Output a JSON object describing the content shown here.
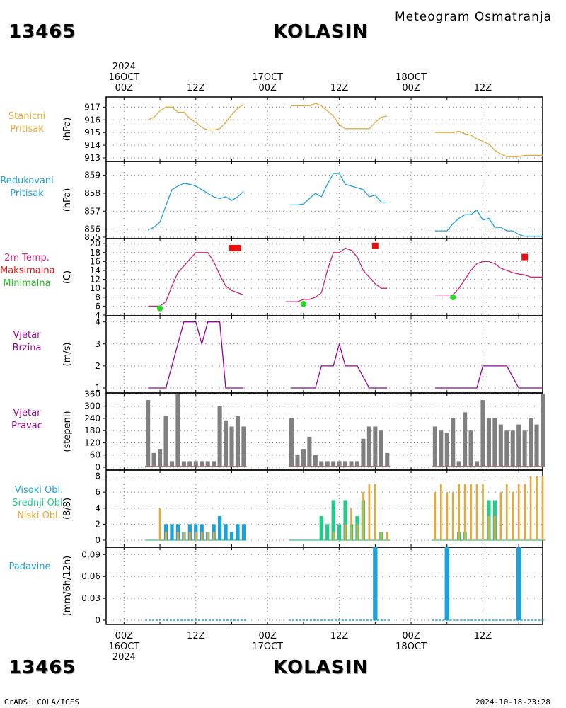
{
  "header": {
    "station_id": "13465",
    "station_name": "KOLASIN",
    "title_right": "Meteogram Osmatranja"
  },
  "footer": {
    "left": "GrADS: COLA/IGES",
    "right": "2024-10-18-23:28"
  },
  "time_axis": {
    "year": "2024",
    "top_labels": [
      {
        "t": 0,
        "lines": [
          "2024",
          "16OCT",
          "00Z"
        ]
      },
      {
        "t": 12,
        "lines": [
          "12Z"
        ]
      },
      {
        "t": 24,
        "lines": [
          "17OCT",
          "00Z"
        ]
      },
      {
        "t": 36,
        "lines": [
          "12Z"
        ]
      },
      {
        "t": 48,
        "lines": [
          "18OCT",
          "00Z"
        ]
      },
      {
        "t": 60,
        "lines": [
          "12Z"
        ]
      }
    ],
    "bottom_labels": [
      {
        "t": 0,
        "lines": [
          "00Z",
          "16OCT",
          "2024"
        ]
      },
      {
        "t": 12,
        "lines": [
          "12Z"
        ]
      },
      {
        "t": 24,
        "lines": [
          "00Z",
          "17OCT"
        ]
      },
      {
        "t": 36,
        "lines": [
          "12Z"
        ]
      },
      {
        "t": 48,
        "lines": [
          "00Z",
          "18OCT"
        ]
      },
      {
        "t": 60,
        "lines": [
          "12Z"
        ]
      }
    ],
    "range_hours": [
      -3,
      70
    ]
  },
  "panel_labels": {
    "pressure": {
      "lines": [
        "Stanicni",
        "Pritisak"
      ],
      "unit": "(hPa)",
      "color": "#e8a838"
    },
    "reduced": {
      "lines": [
        "Redukovani",
        "Pritisak"
      ],
      "unit": "(hPa)",
      "color": "#1ea0d8"
    },
    "temp": {
      "lines": [
        "2m Temp.",
        "Maksimalna",
        "Minimalna"
      ],
      "colors": [
        "#cc2277",
        "#e81010",
        "#22bb22"
      ],
      "unit": "(C)"
    },
    "wind_speed": {
      "lines": [
        "Vjetar",
        "Brzina"
      ],
      "unit": "(m/s)",
      "color": "#990099"
    },
    "wind_dir": {
      "lines": [
        "Vjetar",
        "Pravac"
      ],
      "unit": "(stepeni)",
      "color": "#990099"
    },
    "clouds": {
      "lines": [
        "Visoki Obl.",
        "Srednji Obl.",
        "Niski Obl."
      ],
      "colors": [
        "#1ea0d8",
        "#22cc88",
        "#e8a838"
      ],
      "unit": "(8/8)"
    },
    "precip": {
      "lines": [
        "Padavine"
      ],
      "unit": "(mm/6h/12h)",
      "color": "#1ea0d8"
    }
  },
  "chart_data": [
    {
      "id": "pressure",
      "type": "line",
      "ylim": [
        913,
        917.8
      ],
      "yticks": [
        913,
        914,
        915,
        916,
        917
      ],
      "color": "#e8a838",
      "segments": [
        {
          "x": [
            4,
            5,
            6,
            7,
            8,
            9,
            10,
            11,
            12,
            13,
            14,
            15,
            16,
            17,
            18,
            19,
            20
          ],
          "y": [
            916,
            916.2,
            916.7,
            917,
            917,
            916.6,
            916.6,
            916.1,
            915.8,
            915.4,
            915.2,
            915.2,
            915.3,
            915.8,
            916.4,
            916.9,
            917.2
          ]
        },
        {
          "x": [
            28,
            29,
            30,
            31,
            32,
            33,
            34,
            35,
            36,
            37,
            38,
            39,
            40,
            41,
            42,
            43,
            44
          ],
          "y": [
            917.1,
            917.1,
            917.1,
            917.1,
            917.3,
            917.1,
            916.7,
            916.3,
            915.6,
            915.3,
            915.3,
            915.3,
            915.3,
            915.3,
            915.8,
            916.2,
            916.3
          ]
        },
        {
          "x": [
            52,
            53,
            54,
            55,
            56,
            57,
            58,
            59,
            60,
            61,
            62,
            63,
            64,
            65,
            66,
            67,
            68,
            69,
            70
          ],
          "y": [
            915,
            915,
            915,
            915,
            915.1,
            914.9,
            914.8,
            914.5,
            914.3,
            914.1,
            913.6,
            913.3,
            913.1,
            913.1,
            913.1,
            913.2,
            913.2,
            913.2,
            913.2
          ]
        }
      ]
    },
    {
      "id": "reduced",
      "type": "line",
      "ylim": [
        855.55,
        859.3
      ],
      "yticks": [
        855.55,
        856,
        857,
        858,
        859
      ],
      "ytick_labels": [
        "855",
        "856",
        "857",
        "858",
        "859"
      ],
      "color": "#1ea0d8",
      "segments": [
        {
          "x": [
            4,
            5,
            6,
            7,
            8,
            9,
            10,
            11,
            12,
            13,
            14,
            15,
            16,
            17,
            18,
            19,
            20
          ],
          "y": [
            855.95,
            856.1,
            856.4,
            857.3,
            858.2,
            858.4,
            858.55,
            858.5,
            858.4,
            858.2,
            858,
            857.8,
            857.7,
            857.8,
            857.6,
            857.8,
            858.1
          ]
        },
        {
          "x": [
            28,
            29,
            30,
            31,
            32,
            33,
            34,
            35,
            36,
            37,
            38,
            39,
            40,
            41,
            42,
            43,
            44
          ],
          "y": [
            857.35,
            857.35,
            857.4,
            857.7,
            858,
            857.8,
            858.5,
            859.1,
            859.1,
            858.5,
            858.4,
            858.3,
            858.2,
            857.8,
            857.9,
            857.5,
            857.5
          ]
        },
        {
          "x": [
            52,
            53,
            54,
            55,
            56,
            57,
            58,
            59,
            60,
            61,
            62,
            63,
            64,
            65,
            66,
            67,
            68,
            69,
            70
          ],
          "y": [
            855.9,
            855.9,
            855.9,
            856.3,
            856.6,
            856.8,
            856.8,
            857.05,
            856.5,
            856.6,
            856.1,
            856.1,
            855.9,
            855.9,
            855.7,
            855.6,
            855.6,
            855.6,
            855.6
          ]
        }
      ]
    },
    {
      "id": "temp",
      "type": "line",
      "ylim": [
        4,
        20.5
      ],
      "yticks": [
        4,
        6,
        8,
        10,
        12,
        14,
        16,
        18,
        20
      ],
      "ytick_labels": [
        "4",
        "6",
        "8",
        "10",
        "12",
        "14",
        "16",
        "18",
        "20"
      ],
      "color": "#cc2277",
      "segments": [
        {
          "x": [
            4,
            5,
            6,
            7,
            8,
            9,
            10,
            11,
            12,
            13,
            14,
            15,
            16,
            17,
            18,
            19,
            20
          ],
          "y": [
            6,
            6,
            6,
            7,
            10.5,
            13.5,
            15,
            16.5,
            18,
            18,
            18,
            16,
            13,
            10.5,
            9.5,
            9,
            8.5
          ]
        },
        {
          "x": [
            27,
            28,
            29,
            30,
            31,
            32,
            33,
            34,
            35,
            36,
            37,
            38,
            39,
            40,
            41,
            42,
            43,
            44
          ],
          "y": [
            7,
            7,
            7,
            7.5,
            7.5,
            8,
            9,
            14,
            18,
            18,
            19,
            18.5,
            17,
            14,
            12.5,
            11,
            10,
            10
          ]
        },
        {
          "x": [
            52,
            53,
            54,
            55,
            56,
            57,
            58,
            59,
            60,
            61,
            62,
            63,
            64,
            65,
            66,
            67,
            68,
            69,
            70
          ],
          "y": [
            8.5,
            8.5,
            8.5,
            8.5,
            10,
            12,
            14,
            15.5,
            16,
            16,
            15.5,
            14.5,
            14,
            13.5,
            13.2,
            13,
            12.5,
            12.5,
            12.5
          ]
        }
      ],
      "max_markers": {
        "x": [
          18,
          19,
          42,
          67
        ],
        "y": [
          19,
          19,
          19.5,
          17
        ]
      },
      "min_markers": {
        "x": [
          6,
          30,
          55
        ],
        "y": [
          5.5,
          6.5,
          8
        ]
      }
    },
    {
      "id": "wind_speed",
      "type": "line",
      "ylim": [
        1,
        4.15
      ],
      "yticks": [
        1,
        2,
        3,
        4
      ],
      "color": "#990099",
      "segments": [
        {
          "x": [
            4,
            7,
            10,
            12,
            13,
            14,
            16,
            17,
            20
          ],
          "y": [
            1,
            1,
            4,
            4,
            3,
            4,
            4,
            1,
            1
          ]
        },
        {
          "x": [
            28,
            32,
            33,
            35,
            36,
            37,
            38,
            39,
            41,
            44
          ],
          "y": [
            1,
            1,
            2,
            2,
            3,
            2,
            2,
            2,
            1,
            1
          ]
        },
        {
          "x": [
            52,
            59,
            60,
            63,
            64,
            66,
            70
          ],
          "y": [
            1,
            1,
            2,
            2,
            2,
            1,
            1
          ]
        }
      ]
    },
    {
      "id": "wind_dir",
      "type": "bar",
      "ylim": [
        0,
        365
      ],
      "yticks": [
        0,
        60,
        120,
        180,
        240,
        300,
        360
      ],
      "color": "#808080",
      "hours": [
        4,
        5,
        6,
        7,
        8,
        9,
        10,
        11,
        12,
        13,
        14,
        15,
        16,
        17,
        18,
        19,
        20,
        28,
        29,
        30,
        31,
        32,
        33,
        34,
        35,
        36,
        37,
        38,
        39,
        40,
        41,
        42,
        43,
        44,
        52,
        53,
        54,
        55,
        56,
        57,
        58,
        59,
        60,
        61,
        62,
        63,
        64,
        65,
        66,
        67,
        68,
        69,
        70
      ],
      "values": [
        330,
        70,
        90,
        250,
        30,
        360,
        30,
        30,
        30,
        30,
        30,
        30,
        300,
        230,
        200,
        250,
        200,
        240,
        60,
        90,
        150,
        60,
        30,
        30,
        30,
        30,
        30,
        30,
        30,
        140,
        200,
        200,
        180,
        70,
        200,
        180,
        170,
        240,
        30,
        270,
        180,
        30,
        330,
        240,
        240,
        210,
        180,
        180,
        210,
        180,
        240,
        210,
        360
      ]
    },
    {
      "id": "clouds",
      "type": "bar",
      "ylim": [
        0,
        8.4
      ],
      "yticks": [
        0,
        2,
        4,
        6,
        8
      ],
      "series": [
        {
          "name": "Visoki Obl.",
          "color": "#1ea0d8",
          "hours": [
            7,
            8,
            9,
            10,
            11,
            12,
            13,
            14,
            15,
            16,
            17,
            18,
            19,
            20
          ],
          "values": [
            2,
            2,
            2,
            1,
            2,
            2,
            2,
            1,
            2,
            3,
            2,
            1,
            2,
            2
          ]
        },
        {
          "name": "Srednji Obl.",
          "color": "#22cc88",
          "hours": [
            33,
            34,
            35,
            36,
            37,
            38,
            39,
            40,
            43,
            56,
            57,
            61,
            62
          ],
          "values": [
            3,
            2,
            5,
            2,
            5,
            2,
            3,
            5,
            1,
            1,
            1,
            5,
            5
          ]
        },
        {
          "name": "Niski Obl.",
          "color": "#e8a838",
          "hours": [
            6,
            7,
            9,
            10,
            11,
            12,
            13,
            14,
            15,
            35,
            37,
            38,
            39,
            40,
            41,
            42,
            43,
            44,
            52,
            53,
            54,
            55,
            56,
            57,
            58,
            59,
            60,
            61,
            62,
            63,
            64,
            65,
            66,
            67,
            68,
            69,
            70
          ],
          "values": [
            4,
            1,
            1,
            1,
            1,
            1,
            1,
            1,
            1,
            1,
            2,
            4,
            2,
            6,
            7,
            7,
            1,
            1,
            6,
            7,
            6,
            6,
            7,
            7,
            7,
            7,
            7,
            3,
            3,
            6,
            7,
            6,
            7,
            7,
            8,
            8,
            8
          ]
        }
      ]
    },
    {
      "id": "precip",
      "type": "bar",
      "ylim": [
        0,
        0.1
      ],
      "yticks": [
        0,
        0.03,
        0.06,
        0.09
      ],
      "color": "#1ea0d8",
      "hours": [
        42,
        54,
        66
      ],
      "values": [
        0.1,
        0.1,
        0.1
      ]
    }
  ]
}
